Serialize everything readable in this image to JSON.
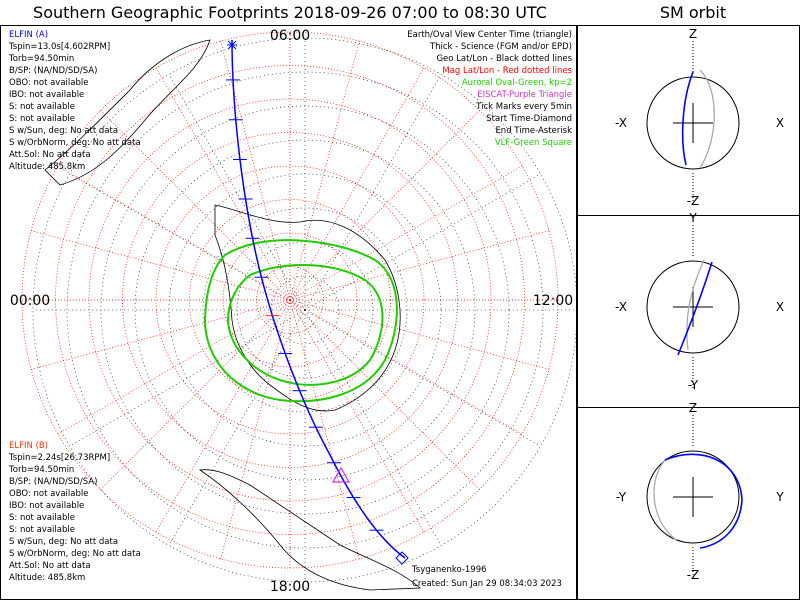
{
  "header": {
    "title": "Southern Geographic Footprints 2018-09-26 07:00 to 08:30 UTC",
    "side_title": "SM orbit"
  },
  "hour_labels": {
    "top": "06:00",
    "right": "12:00",
    "bottom": "18:00",
    "left": "00:00"
  },
  "elfin_a": {
    "name": "ELFIN (A)",
    "color": "#0000ff",
    "lines": [
      "Tspin=13.0s[4.602RPM]",
      "Torb=94.50min",
      "B/SP: (NA/ND/SD/SA)",
      "OBO: not available",
      "IBO: not available",
      "S: not available",
      "S: not available",
      "S w/Sun, deg: No att data",
      "S w/OrbNorm, deg: No att data",
      "Att.Sol: No att data",
      "Altitude: 485.8km"
    ]
  },
  "elfin_b": {
    "name": "ELFIN (B)",
    "color": "#ff3300",
    "lines": [
      "Tspin=2.24s[26.73RPM]",
      "Torb=94.50min",
      "B/SP: (NA/ND/SD/SA)",
      "OBO: not available",
      "IBO: not available",
      "S: not available",
      "S: not available",
      "S w/Sun, deg: No att data",
      "S w/OrbNorm, deg: No att data",
      "Att.Sol: No att data",
      "Altitude: 485.8km"
    ]
  },
  "legend": [
    {
      "text": "Earth/Oval View Center Time (triangle)",
      "color": "#000000"
    },
    {
      "text": "Thick - Science (FGM and/or EPD)",
      "color": "#000000"
    },
    {
      "text": "Geo Lat/Lon - Black dotted lines",
      "color": "#000000"
    },
    {
      "text": "Mag Lat/Lon - Red dotted lines",
      "color": "#ff0000"
    },
    {
      "text": "Auroral Oval-Green, kp=2",
      "color": "#22cc00"
    },
    {
      "text": "EISCAT-Purple Triangle",
      "color": "#cc33cc"
    },
    {
      "text": "Tick Marks every 5min",
      "color": "#000000"
    },
    {
      "text": "Start Time-Diamond",
      "color": "#000000"
    },
    {
      "text": "End Time-Asterisk",
      "color": "#000000"
    },
    {
      "text": "VLF-Green Square",
      "color": "#22cc00"
    }
  ],
  "footer": {
    "model": "Tsyganenko-1996",
    "created": "Created: Sun Jan 29 08:34:03 2023"
  },
  "orbit_panels": [
    {
      "top": "Z",
      "bottom": "-Z",
      "left": "-X",
      "right": "X"
    },
    {
      "top": "Y",
      "bottom": "-Y",
      "left": "-X",
      "right": "X"
    },
    {
      "top": "Z",
      "bottom": "-Z",
      "left": "-Y",
      "right": "Y"
    }
  ],
  "colors": {
    "track": "#0000ff",
    "track_b": "#ff3300",
    "mag_grid": "#ff0000",
    "geo_grid": "#000000",
    "oval": "#22cc00",
    "shadow_orbit": "#aaaaaa"
  },
  "icons": {
    "view_center": "triangle-marker",
    "start": "diamond-marker",
    "end": "asterisk-marker"
  }
}
